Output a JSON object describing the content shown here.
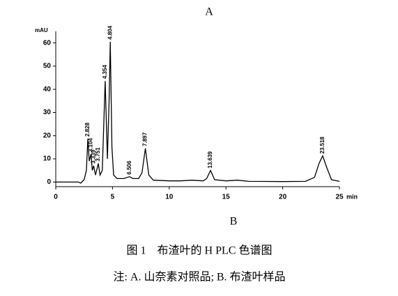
{
  "chart_data": {
    "type": "line",
    "title": "A",
    "subtitle": "B",
    "caption": "图 1　布渣叶的 H PLC 色谱图",
    "note": "注: A. 山奈素对照品; B. 布渣叶样品",
    "ylabel": "mAU",
    "xlabel": "min",
    "x": [
      0,
      1,
      2,
      2.2,
      2.5,
      2.7,
      2.828,
      2.95,
      3.104,
      3.22,
      3.339,
      3.5,
      3.751,
      3.9,
      4.1,
      4.354,
      4.55,
      4.7,
      4.804,
      4.95,
      5.1,
      5.4,
      6,
      6.3,
      6.506,
      6.8,
      7.3,
      7.6,
      7.897,
      8.2,
      8.6,
      10,
      11,
      12,
      13,
      13.3,
      13.639,
      14,
      15,
      16,
      17,
      20,
      22,
      22.8,
      23.2,
      23.518,
      23.9,
      24.3,
      25
    ],
    "series": [
      {
        "color": "#000000",
        "values": [
          0,
          0,
          0,
          -0.5,
          1,
          5,
          18.7,
          9,
          12,
          5,
          7,
          3,
          8,
          3,
          5,
          43.6,
          10,
          35,
          60.5,
          15,
          3,
          1.5,
          1.5,
          2,
          2.3,
          1.5,
          1.5,
          4,
          14.5,
          3,
          0.8,
          0.5,
          0.5,
          0.8,
          0.5,
          1.5,
          5,
          1,
          0.5,
          0.8,
          0.3,
          0.2,
          0.3,
          2,
          8,
          11.3,
          6,
          1,
          0.3
        ]
      }
    ],
    "annotations": [
      {
        "x": 2.828,
        "label": "2.828"
      },
      {
        "x": 3.104,
        "label": "3.104"
      },
      {
        "x": 3.339,
        "label": "3.339"
      },
      {
        "x": 3.751,
        "label": "3.751"
      },
      {
        "x": 4.354,
        "label": "4.354"
      },
      {
        "x": 4.804,
        "label": "4.804"
      },
      {
        "x": 6.506,
        "label": "6.506"
      },
      {
        "x": 7.897,
        "label": "7.897"
      },
      {
        "x": 13.639,
        "label": "13.639"
      },
      {
        "x": 23.518,
        "label": "23.518"
      }
    ],
    "xlim": [
      0,
      25
    ],
    "xticks": [
      0,
      5,
      10,
      15,
      20,
      25
    ],
    "ylim": [
      -2,
      65
    ],
    "yticks": [
      0,
      10,
      20,
      30,
      40,
      50,
      60
    ]
  }
}
